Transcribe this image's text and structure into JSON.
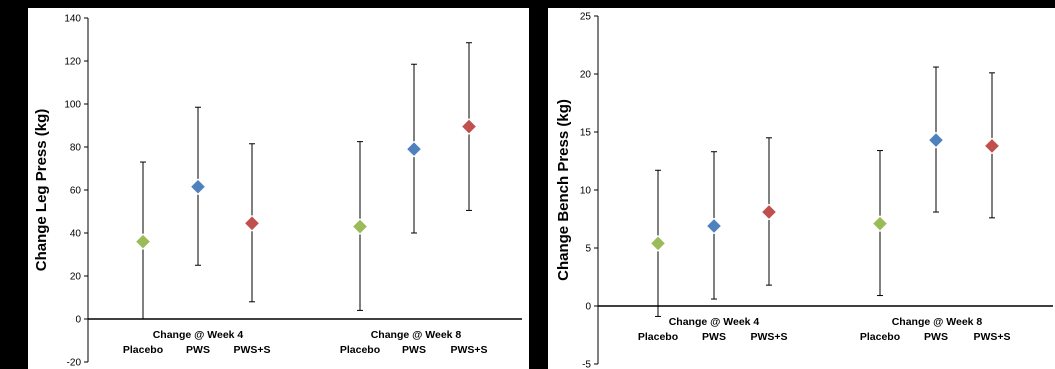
{
  "chart_data": [
    {
      "type": "scatter",
      "ylabel": "Change Leg Press (kg)",
      "ylim": [
        -20,
        140
      ],
      "yticks": [
        -20,
        0,
        20,
        40,
        60,
        80,
        100,
        120,
        140
      ],
      "groups": [
        {
          "label": "Change @ Week 4",
          "points": [
            {
              "name": "Placebo",
              "y": 36,
              "low": 0,
              "high": 73,
              "color": "#9BBB59"
            },
            {
              "name": "PWS",
              "y": 61.5,
              "low": 25,
              "high": 98.5,
              "color": "#4F81BD"
            },
            {
              "name": "PWS+S",
              "y": 44.5,
              "low": 8,
              "high": 81.5,
              "color": "#C0504D"
            }
          ]
        },
        {
          "label": "Change @ Week 8",
          "points": [
            {
              "name": "Placebo",
              "y": 43,
              "low": 4,
              "high": 82.5,
              "color": "#9BBB59"
            },
            {
              "name": "PWS",
              "y": 79,
              "low": 40,
              "high": 118.5,
              "color": "#4F81BD"
            },
            {
              "name": "PWS+S",
              "y": 89.5,
              "low": 50.5,
              "high": 128.5,
              "color": "#C0504D"
            }
          ]
        }
      ]
    },
    {
      "type": "scatter",
      "ylabel": "Change Bench Press (kg)",
      "ylim": [
        -5,
        25
      ],
      "yticks": [
        -5,
        0,
        5,
        10,
        15,
        20,
        25
      ],
      "groups": [
        {
          "label": "Change @ Week 4",
          "points": [
            {
              "name": "Placebo",
              "y": 5.4,
              "low": -0.9,
              "high": 11.7,
              "color": "#9BBB59"
            },
            {
              "name": "PWS",
              "y": 6.9,
              "low": 0.6,
              "high": 13.3,
              "color": "#4F81BD"
            },
            {
              "name": "PWS+S",
              "y": 8.1,
              "low": 1.8,
              "high": 14.5,
              "color": "#C0504D"
            }
          ]
        },
        {
          "label": "Change @ Week 8",
          "points": [
            {
              "name": "Placebo",
              "y": 7.1,
              "low": 0.9,
              "high": 13.4,
              "color": "#9BBB59"
            },
            {
              "name": "PWS",
              "y": 14.3,
              "low": 8.1,
              "high": 20.6,
              "color": "#4F81BD"
            },
            {
              "name": "PWS+S",
              "y": 13.8,
              "low": 7.6,
              "high": 20.1,
              "color": "#C0504D"
            }
          ]
        }
      ]
    }
  ]
}
